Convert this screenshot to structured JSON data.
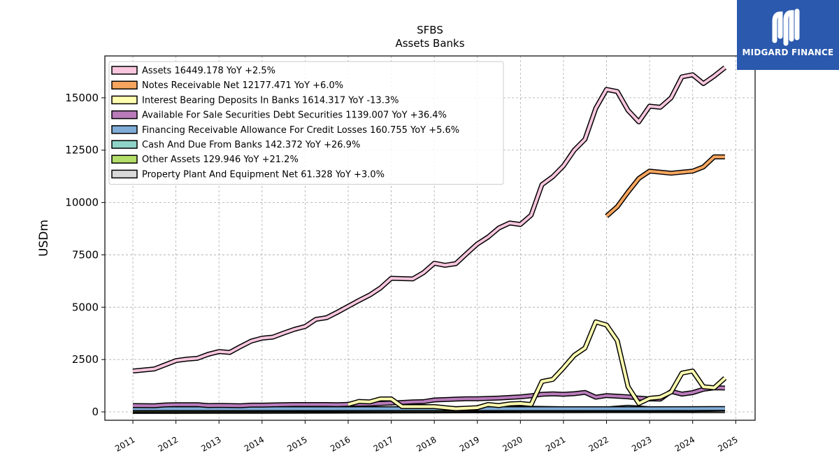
{
  "brand": {
    "name": "MIDGARD FINANCE",
    "color": "#2a59ad"
  },
  "chart_data": {
    "type": "line",
    "title": "SFBS",
    "subtitle": "Assets Banks",
    "ylabel": "USDm",
    "xlabel": "",
    "ylim": [
      -400,
      17000
    ],
    "xlim": [
      2010.35,
      2025.45
    ],
    "grid": true,
    "legend_position": "top-left",
    "yticks": [
      0,
      2500,
      5000,
      7500,
      10000,
      12500,
      15000
    ],
    "ytick_labels": [
      "0",
      "2500",
      "5000",
      "7500",
      "10000",
      "12500",
      "15000"
    ],
    "xticks": [
      2011,
      2012,
      2013,
      2014,
      2015,
      2016,
      2017,
      2018,
      2019,
      2020,
      2021,
      2022,
      2023,
      2024,
      2025
    ],
    "xtick_labels": [
      "2011",
      "2012",
      "2013",
      "2014",
      "2015",
      "2016",
      "2017",
      "2018",
      "2019",
      "2020",
      "2021",
      "2022",
      "2023",
      "2024",
      "2025"
    ],
    "series": [
      {
        "name": "Assets",
        "legend_label": "Assets  16449.178 YoY +2.5%",
        "color": "#f9c6de",
        "x": [
          2011.0,
          2011.5,
          2011.75,
          2012.0,
          2012.25,
          2012.5,
          2012.75,
          2013.0,
          2013.25,
          2013.5,
          2013.75,
          2014.0,
          2014.25,
          2014.5,
          2014.75,
          2015.0,
          2015.25,
          2015.5,
          2015.75,
          2016.0,
          2016.25,
          2016.5,
          2016.75,
          2017.0,
          2017.5,
          2017.75,
          2018.0,
          2018.25,
          2018.5,
          2018.75,
          2019.0,
          2019.25,
          2019.5,
          2019.75,
          2020.0,
          2020.25,
          2020.5,
          2020.75,
          2021.0,
          2021.25,
          2021.5,
          2021.75,
          2022.0,
          2022.25,
          2022.5,
          2022.75,
          2023.0,
          2023.25,
          2023.5,
          2023.75,
          2024.0,
          2024.25,
          2024.5,
          2024.75
        ],
        "values": [
          1950,
          2050,
          2250,
          2450,
          2520,
          2560,
          2750,
          2880,
          2840,
          3120,
          3380,
          3520,
          3570,
          3760,
          3940,
          4080,
          4420,
          4500,
          4760,
          5040,
          5320,
          5580,
          5920,
          6380,
          6350,
          6650,
          7100,
          7000,
          7080,
          7560,
          8020,
          8350,
          8780,
          9020,
          8950,
          9400,
          10850,
          11230,
          11750,
          12500,
          13020,
          14500,
          15400,
          15300,
          14400,
          13850,
          14600,
          14550,
          15000,
          16000,
          16100,
          15680,
          16040,
          16449
        ]
      },
      {
        "name": "Notes Receivable Net",
        "legend_label": "Notes Receivable Net  12177.471 YoY +6.0%",
        "color": "#f7a55e",
        "x": [
          2022.0,
          2022.25,
          2022.5,
          2022.75,
          2023.0,
          2023.25,
          2023.5,
          2023.75,
          2024.0,
          2024.25,
          2024.5,
          2024.75
        ],
        "values": [
          9350,
          9800,
          10500,
          11150,
          11500,
          11450,
          11400,
          11450,
          11500,
          11700,
          12180,
          12177
        ]
      },
      {
        "name": "Interest Bearing Deposits In Banks",
        "legend_label": "Interest Bearing Deposits In Banks  1614.317 YoY -13.3%",
        "color": "#ffffb0",
        "x": [
          2016.0,
          2016.25,
          2016.5,
          2016.75,
          2017.0,
          2017.25,
          2017.5,
          2017.75,
          2018.0,
          2018.5,
          2019.0,
          2019.25,
          2019.5,
          2019.75,
          2020.0,
          2020.25,
          2020.5,
          2020.75,
          2021.0,
          2021.25,
          2021.5,
          2021.75,
          2022.0,
          2022.25,
          2022.5,
          2022.75,
          2023.0,
          2023.25,
          2023.5,
          2023.75,
          2024.0,
          2024.25,
          2024.5,
          2024.75
        ],
        "values": [
          350,
          500,
          480,
          620,
          620,
          250,
          250,
          250,
          250,
          150,
          200,
          350,
          300,
          380,
          400,
          350,
          1450,
          1550,
          2100,
          2700,
          3050,
          4300,
          4150,
          3400,
          1200,
          400,
          650,
          700,
          950,
          1850,
          1950,
          1200,
          1150,
          1614
        ]
      },
      {
        "name": "Available For Sale Securities Debt Securities",
        "legend_label": "Available For Sale Securities Debt Securities  1139.007 YoY +36.4%",
        "color": "#b97bba",
        "x": [
          2011.0,
          2011.5,
          2011.75,
          2012.0,
          2012.5,
          2012.75,
          2013.0,
          2013.5,
          2013.75,
          2014.0,
          2014.5,
          2014.75,
          2015.0,
          2015.5,
          2015.75,
          2016.0,
          2016.5,
          2016.75,
          2017.0,
          2017.5,
          2017.75,
          2018.0,
          2018.5,
          2018.75,
          2019.0,
          2019.5,
          2019.75,
          2020.0,
          2020.25,
          2020.5,
          2020.75,
          2021.0,
          2021.25,
          2021.5,
          2021.75,
          2022.0,
          2022.5,
          2022.75,
          2023.0,
          2023.25,
          2023.5,
          2023.75,
          2024.0,
          2024.25,
          2024.5,
          2024.75
        ],
        "values": [
          300,
          290,
          330,
          340,
          340,
          300,
          310,
          290,
          320,
          320,
          340,
          350,
          350,
          350,
          340,
          360,
          370,
          400,
          420,
          480,
          490,
          570,
          610,
          630,
          630,
          660,
          690,
          720,
          770,
          840,
          860,
          840,
          870,
          930,
          700,
          780,
          720,
          660,
          620,
          610,
          980,
          850,
          920,
          1080,
          1150,
          1139
        ]
      },
      {
        "name": "Financing Receivable Allowance For Credit Losses",
        "legend_label": "Financing Receivable Allowance For Credit Losses  160.755 YoY +5.6%",
        "color": "#7fadd7",
        "x": [
          2011.0,
          2013.0,
          2015.0,
          2017.0,
          2019.0,
          2021.0,
          2022.0,
          2023.0,
          2024.0,
          2024.75
        ],
        "values": [
          150,
          150,
          150,
          150,
          150,
          150,
          150,
          152,
          155,
          161
        ]
      },
      {
        "name": "Cash And Due From Banks",
        "legend_label": "Cash And Due From Banks  142.372 YoY +26.9%",
        "color": "#8ed3c7",
        "x": [
          2011.0,
          2014.0,
          2017.0,
          2019.0,
          2020.0,
          2021.0,
          2022.0,
          2022.5,
          2023.0,
          2023.5,
          2024.0,
          2024.75
        ],
        "values": [
          130,
          130,
          140,
          160,
          180,
          150,
          140,
          220,
          150,
          120,
          110,
          142
        ]
      },
      {
        "name": "Other Assets",
        "legend_label": "Other Assets  129.946 YoY +21.2%",
        "color": "#b3de69",
        "x": [
          2011.0,
          2014.0,
          2017.0,
          2019.0,
          2021.0,
          2022.0,
          2023.0,
          2024.0,
          2024.75
        ],
        "values": [
          70,
          80,
          90,
          100,
          110,
          110,
          110,
          115,
          130
        ]
      },
      {
        "name": "Property Plant And Equipment Net",
        "legend_label": "Property Plant And Equipment Net  61.328 YoY +3.0%",
        "color": "#d9d9d9",
        "x": [
          2011.0,
          2013.0,
          2015.0,
          2017.0,
          2019.0,
          2021.0,
          2022.0,
          2023.0,
          2024.0,
          2024.75
        ],
        "values": [
          20,
          25,
          30,
          40,
          50,
          55,
          58,
          60,
          60,
          61
        ]
      }
    ]
  }
}
